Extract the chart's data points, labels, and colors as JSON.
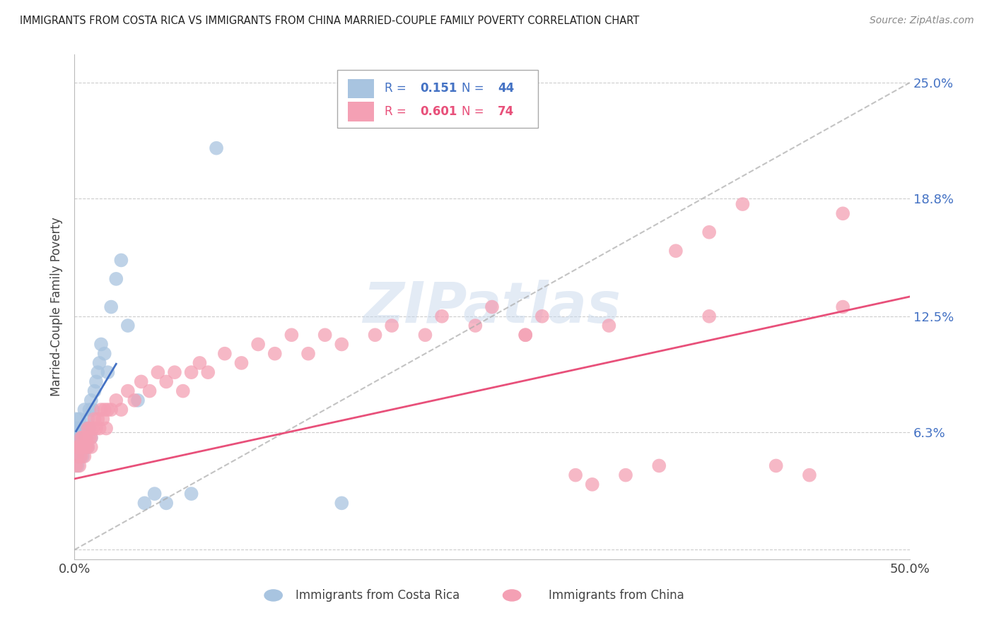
{
  "title": "IMMIGRANTS FROM COSTA RICA VS IMMIGRANTS FROM CHINA MARRIED-COUPLE FAMILY POVERTY CORRELATION CHART",
  "source": "Source: ZipAtlas.com",
  "ylabel": "Married-Couple Family Poverty",
  "xmin": 0.0,
  "xmax": 0.5,
  "ymin": -0.005,
  "ymax": 0.265,
  "yticks": [
    0.0,
    0.063,
    0.125,
    0.188,
    0.25
  ],
  "ytick_labels": [
    "",
    "6.3%",
    "12.5%",
    "18.8%",
    "25.0%"
  ],
  "xticks": [
    0.0,
    0.1,
    0.2,
    0.3,
    0.4,
    0.5
  ],
  "xtick_labels": [
    "0.0%",
    "",
    "",
    "",
    "",
    "50.0%"
  ],
  "costa_rica_color": "#a8c4e0",
  "china_color": "#f4a0b4",
  "costa_rica_line_color": "#4472c4",
  "china_line_color": "#e8507a",
  "dashed_line_color": "#aaaaaa",
  "legend_R_costa_rica": "0.151",
  "legend_N_costa_rica": "44",
  "legend_R_china": "0.601",
  "legend_N_china": "74",
  "watermark": "ZIPatlas",
  "costa_rica_x": [
    0.001,
    0.001,
    0.001,
    0.002,
    0.002,
    0.002,
    0.002,
    0.003,
    0.003,
    0.003,
    0.004,
    0.004,
    0.004,
    0.005,
    0.005,
    0.006,
    0.006,
    0.007,
    0.007,
    0.008,
    0.008,
    0.009,
    0.009,
    0.01,
    0.01,
    0.011,
    0.012,
    0.013,
    0.014,
    0.015,
    0.016,
    0.018,
    0.02,
    0.022,
    0.025,
    0.028,
    0.032,
    0.038,
    0.042,
    0.048,
    0.055,
    0.07,
    0.085,
    0.16
  ],
  "costa_rica_y": [
    0.055,
    0.065,
    0.07,
    0.045,
    0.055,
    0.06,
    0.065,
    0.05,
    0.06,
    0.07,
    0.055,
    0.06,
    0.065,
    0.05,
    0.065,
    0.055,
    0.075,
    0.06,
    0.065,
    0.055,
    0.07,
    0.065,
    0.075,
    0.06,
    0.08,
    0.075,
    0.085,
    0.09,
    0.095,
    0.1,
    0.11,
    0.105,
    0.095,
    0.13,
    0.145,
    0.155,
    0.12,
    0.08,
    0.025,
    0.03,
    0.025,
    0.03,
    0.215,
    0.025
  ],
  "china_x": [
    0.001,
    0.001,
    0.002,
    0.002,
    0.003,
    0.003,
    0.004,
    0.004,
    0.005,
    0.005,
    0.006,
    0.006,
    0.007,
    0.007,
    0.008,
    0.008,
    0.009,
    0.009,
    0.01,
    0.01,
    0.011,
    0.012,
    0.013,
    0.014,
    0.015,
    0.016,
    0.017,
    0.018,
    0.019,
    0.02,
    0.022,
    0.025,
    0.028,
    0.032,
    0.036,
    0.04,
    0.045,
    0.05,
    0.055,
    0.06,
    0.065,
    0.07,
    0.075,
    0.08,
    0.09,
    0.1,
    0.11,
    0.12,
    0.13,
    0.14,
    0.15,
    0.16,
    0.18,
    0.19,
    0.21,
    0.22,
    0.24,
    0.25,
    0.27,
    0.28,
    0.3,
    0.31,
    0.33,
    0.35,
    0.36,
    0.38,
    0.4,
    0.42,
    0.44,
    0.46,
    0.27,
    0.32,
    0.38,
    0.46
  ],
  "china_y": [
    0.045,
    0.055,
    0.05,
    0.055,
    0.045,
    0.055,
    0.05,
    0.06,
    0.055,
    0.06,
    0.05,
    0.055,
    0.06,
    0.055,
    0.065,
    0.055,
    0.06,
    0.065,
    0.055,
    0.06,
    0.065,
    0.07,
    0.065,
    0.07,
    0.065,
    0.075,
    0.07,
    0.075,
    0.065,
    0.075,
    0.075,
    0.08,
    0.075,
    0.085,
    0.08,
    0.09,
    0.085,
    0.095,
    0.09,
    0.095,
    0.085,
    0.095,
    0.1,
    0.095,
    0.105,
    0.1,
    0.11,
    0.105,
    0.115,
    0.105,
    0.115,
    0.11,
    0.115,
    0.12,
    0.115,
    0.125,
    0.12,
    0.13,
    0.115,
    0.125,
    0.04,
    0.035,
    0.04,
    0.045,
    0.16,
    0.17,
    0.185,
    0.045,
    0.04,
    0.18,
    0.115,
    0.12,
    0.125,
    0.13
  ],
  "cr_line_xrange": [
    0.001,
    0.025
  ],
  "cr_line_intercept": 0.062,
  "cr_line_slope": 1.5,
  "ch_line_xrange": [
    0.0,
    0.5
  ],
  "ch_line_intercept": 0.038,
  "ch_line_slope": 0.195,
  "dash_line_intercept": 0.0,
  "dash_line_slope": 0.5
}
